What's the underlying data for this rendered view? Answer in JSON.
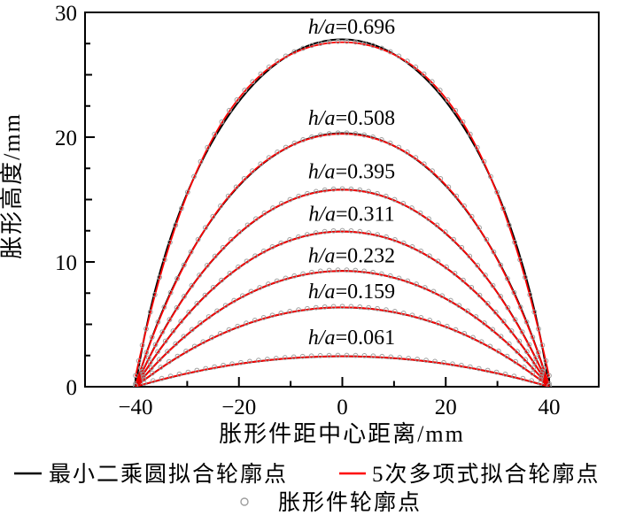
{
  "chart_data": {
    "type": "line",
    "title": "",
    "xlabel": "胀形件距中心距离/mm",
    "ylabel": "胀形高度/mm",
    "xlim": [
      -49.8,
      49.6
    ],
    "ylim": [
      0,
      30
    ],
    "x_major_ticks": [
      -40,
      -20,
      0,
      20,
      40
    ],
    "x_minor_ticks": [
      -30,
      -10,
      10,
      30
    ],
    "y_major_ticks": [
      0,
      10,
      20,
      30
    ],
    "y_minor_step": 2.5,
    "grid": "off",
    "half_width_a_mm": 40,
    "x_range_mm": [
      -40,
      40
    ],
    "label_x_mm": 1.8,
    "marker_arc_step_mm": 1.7,
    "series": [
      {
        "label": "h/a=0.696",
        "h_over_a": 0.696,
        "height_mm": 27.84,
        "label_y_mm": 28.3
      },
      {
        "label": "h/a=0.508",
        "h_over_a": 0.508,
        "height_mm": 20.32,
        "label_y_mm": 21.0
      },
      {
        "label": "h/a=0.395",
        "h_over_a": 0.395,
        "height_mm": 15.8,
        "label_y_mm": 16.7
      },
      {
        "label": "h/a=0.311",
        "h_over_a": 0.311,
        "height_mm": 12.44,
        "label_y_mm": 13.3
      },
      {
        "label": "h/a=0.232",
        "h_over_a": 0.232,
        "height_mm": 9.28,
        "label_y_mm": 9.95
      },
      {
        "label": "h/a=0.159",
        "h_over_a": 0.159,
        "height_mm": 6.36,
        "label_y_mm": 7.1
      },
      {
        "label": "h/a=0.061",
        "h_over_a": 0.061,
        "height_mm": 2.44,
        "label_y_mm": 3.4
      }
    ],
    "legend": [
      {
        "label": "最小二乘圆拟合轮廓点",
        "type": "line",
        "color": "#000000"
      },
      {
        "label": "5次多项式拟合轮廓点",
        "type": "line",
        "color": "#fe0000"
      },
      {
        "label": "胀形件轮廓点",
        "type": "marker",
        "color": "#9e9e9e"
      }
    ],
    "legend_position": "bottom",
    "colors": {
      "circle_fit": "#000000",
      "poly_fit": "#fe0000",
      "contour_points": "#9e9e9e",
      "axis": "#000000",
      "background": "#ffffff"
    }
  }
}
